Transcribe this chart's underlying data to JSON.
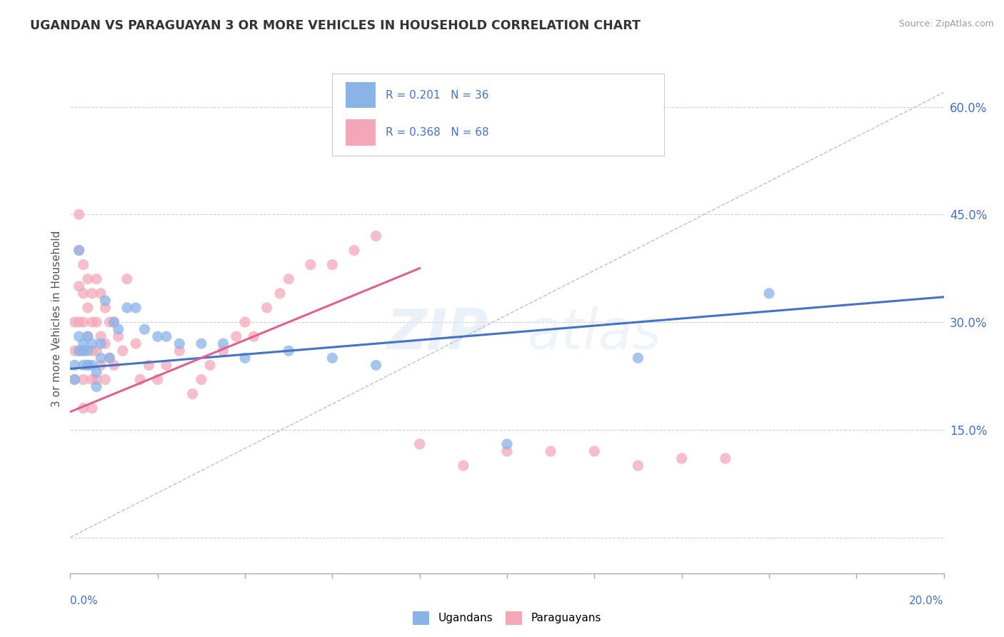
{
  "title": "UGANDAN VS PARAGUAYAN 3 OR MORE VEHICLES IN HOUSEHOLD CORRELATION CHART",
  "source": "Source: ZipAtlas.com",
  "ylabel": "3 or more Vehicles in Household",
  "y_ticks": [
    0.0,
    0.15,
    0.3,
    0.45,
    0.6
  ],
  "y_tick_labels": [
    "",
    "15.0%",
    "30.0%",
    "45.0%",
    "60.0%"
  ],
  "xlim": [
    0.0,
    0.2
  ],
  "ylim": [
    -0.05,
    0.66
  ],
  "ugandan_color": "#8ab4e8",
  "paraguayan_color": "#f4a7b9",
  "ugandan_line_color": "#4472C4",
  "paraguayan_line_color": "#E06090",
  "diagonal_color": "#c0c0c0",
  "R_ugandan": 0.201,
  "N_ugandan": 36,
  "R_paraguayan": 0.368,
  "N_paraguayan": 68,
  "ugandan_x": [
    0.001,
    0.001,
    0.002,
    0.002,
    0.002,
    0.003,
    0.003,
    0.003,
    0.004,
    0.004,
    0.004,
    0.005,
    0.005,
    0.006,
    0.006,
    0.007,
    0.007,
    0.008,
    0.009,
    0.01,
    0.011,
    0.013,
    0.015,
    0.017,
    0.02,
    0.022,
    0.025,
    0.03,
    0.035,
    0.04,
    0.05,
    0.06,
    0.07,
    0.1,
    0.13,
    0.16
  ],
  "ugandan_y": [
    0.24,
    0.22,
    0.4,
    0.28,
    0.26,
    0.27,
    0.26,
    0.24,
    0.28,
    0.26,
    0.24,
    0.27,
    0.24,
    0.23,
    0.21,
    0.27,
    0.25,
    0.33,
    0.25,
    0.3,
    0.29,
    0.32,
    0.32,
    0.29,
    0.28,
    0.28,
    0.27,
    0.27,
    0.27,
    0.25,
    0.26,
    0.25,
    0.24,
    0.13,
    0.25,
    0.34
  ],
  "paraguayan_x": [
    0.001,
    0.001,
    0.001,
    0.002,
    0.002,
    0.002,
    0.002,
    0.002,
    0.003,
    0.003,
    0.003,
    0.003,
    0.003,
    0.003,
    0.004,
    0.004,
    0.004,
    0.004,
    0.005,
    0.005,
    0.005,
    0.005,
    0.005,
    0.006,
    0.006,
    0.006,
    0.006,
    0.007,
    0.007,
    0.007,
    0.008,
    0.008,
    0.008,
    0.009,
    0.009,
    0.01,
    0.01,
    0.011,
    0.012,
    0.013,
    0.015,
    0.016,
    0.018,
    0.02,
    0.022,
    0.025,
    0.028,
    0.03,
    0.032,
    0.035,
    0.038,
    0.04,
    0.042,
    0.045,
    0.048,
    0.05,
    0.055,
    0.06,
    0.065,
    0.07,
    0.08,
    0.09,
    0.1,
    0.11,
    0.12,
    0.13,
    0.14,
    0.15
  ],
  "paraguayan_y": [
    0.3,
    0.26,
    0.22,
    0.45,
    0.4,
    0.35,
    0.3,
    0.26,
    0.38,
    0.34,
    0.3,
    0.26,
    0.22,
    0.18,
    0.36,
    0.32,
    0.28,
    0.24,
    0.34,
    0.3,
    0.26,
    0.22,
    0.18,
    0.36,
    0.3,
    0.26,
    0.22,
    0.34,
    0.28,
    0.24,
    0.32,
    0.27,
    0.22,
    0.3,
    0.25,
    0.3,
    0.24,
    0.28,
    0.26,
    0.36,
    0.27,
    0.22,
    0.24,
    0.22,
    0.24,
    0.26,
    0.2,
    0.22,
    0.24,
    0.26,
    0.28,
    0.3,
    0.28,
    0.32,
    0.34,
    0.36,
    0.38,
    0.38,
    0.4,
    0.42,
    0.13,
    0.1,
    0.12,
    0.12,
    0.12,
    0.1,
    0.11,
    0.11
  ]
}
